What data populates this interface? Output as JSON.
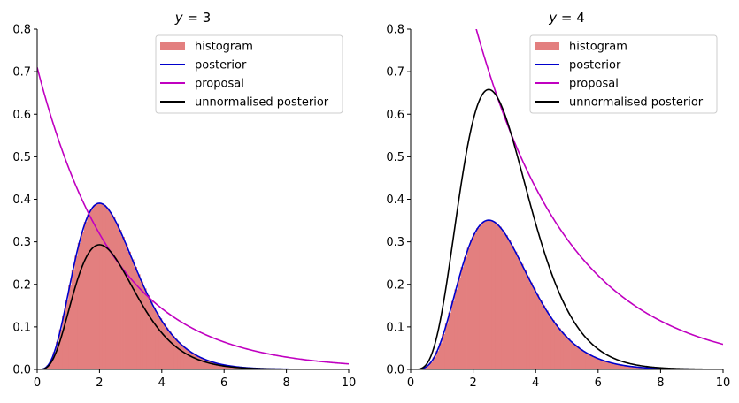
{
  "chart_data": [
    {
      "type": "line",
      "title": "y = 3",
      "title_var": "y",
      "title_val": "3",
      "xlim": [
        0,
        10
      ],
      "ylim": [
        0,
        0.8
      ],
      "xticks": [
        "0",
        "2",
        "4",
        "6",
        "8",
        "10"
      ],
      "yticks": [
        "0.0",
        "0.1",
        "0.2",
        "0.3",
        "0.4",
        "0.5",
        "0.6",
        "0.7",
        "0.8"
      ],
      "legend_position": "top-right",
      "histogram": {
        "name": "histogram",
        "color": "#e37f7f",
        "bin_width": 0.1,
        "approximates": "posterior"
      },
      "series": [
        {
          "name": "posterior",
          "color": "#0000cc",
          "kind": "gamma_pdf",
          "shape": 5,
          "rate": 2,
          "scale": 1
        },
        {
          "name": "proposal",
          "color": "#c000c0",
          "kind": "exponential",
          "amplitude": 0.71,
          "decay": 0.4
        },
        {
          "name": "unnormalised posterior",
          "color": "#000000",
          "kind": "gamma_pdf",
          "shape": 5,
          "rate": 2,
          "scale": 0.75
        }
      ]
    },
    {
      "type": "line",
      "title": "y = 4",
      "title_var": "y",
      "title_val": "4",
      "xlim": [
        0,
        10
      ],
      "ylim": [
        0,
        0.8
      ],
      "xticks": [
        "0",
        "2",
        "4",
        "6",
        "8",
        "10"
      ],
      "yticks": [
        "0.0",
        "0.1",
        "0.2",
        "0.3",
        "0.4",
        "0.5",
        "0.6",
        "0.7",
        "0.8"
      ],
      "legend_position": "top-right",
      "histogram": {
        "name": "histogram",
        "color": "#e37f7f",
        "bin_width": 0.1,
        "approximates": "posterior"
      },
      "series": [
        {
          "name": "posterior",
          "color": "#0000cc",
          "kind": "gamma_pdf",
          "shape": 6,
          "rate": 2,
          "scale": 1
        },
        {
          "name": "proposal",
          "color": "#c000c0",
          "kind": "exponential",
          "amplitude": 1.6,
          "decay": 0.33
        },
        {
          "name": "unnormalised posterior",
          "color": "#000000",
          "kind": "gamma_pdf",
          "shape": 6,
          "rate": 2,
          "scale": 1.875
        }
      ]
    }
  ]
}
